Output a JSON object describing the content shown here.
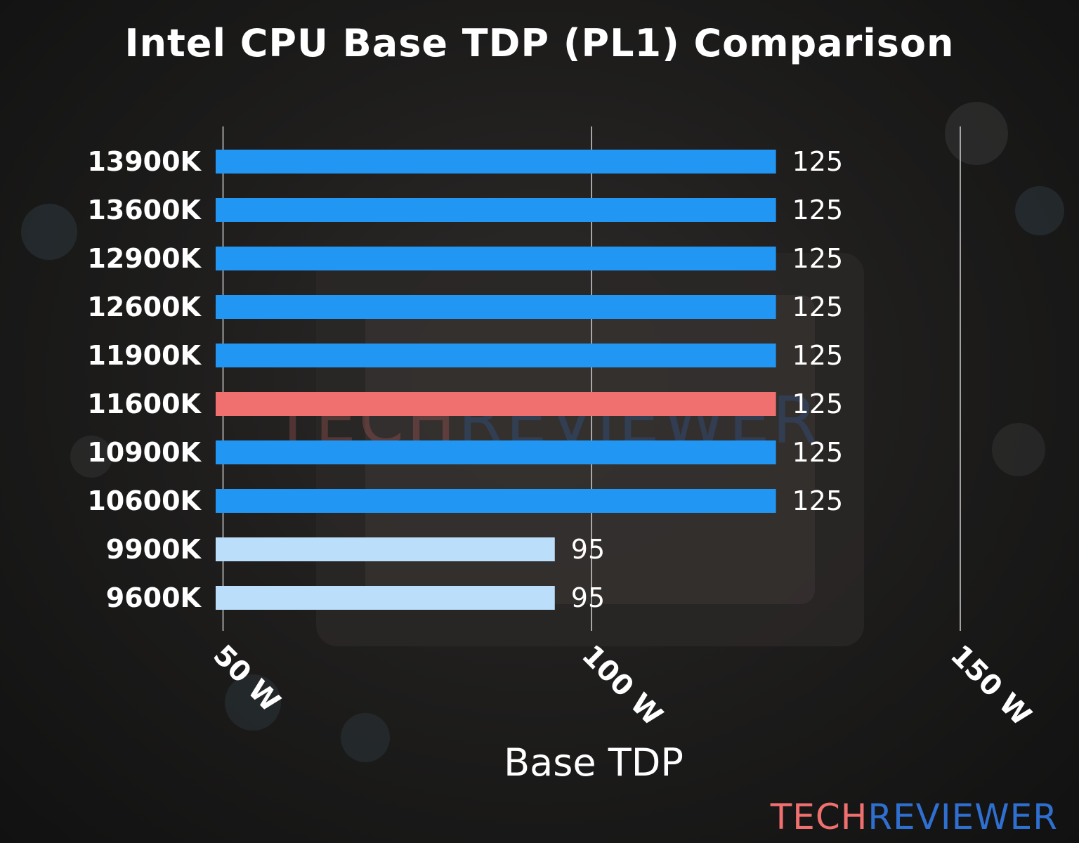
{
  "chart_data": {
    "type": "bar",
    "orientation": "horizontal",
    "title": "Intel CPU Base TDP (PL1) Comparison",
    "xlabel": "Base TDP",
    "ylabel": "",
    "xlim": [
      49,
      150
    ],
    "xticks": [
      50,
      100,
      150
    ],
    "xtick_labels": [
      "50 W",
      "100 W",
      "150 W"
    ],
    "grid": "vertical lines at ticks",
    "categories": [
      "13900K",
      "13600K",
      "12900K",
      "12600K",
      "11900K",
      "11600K",
      "10900K",
      "10600K",
      "9900K",
      "9600K"
    ],
    "values": [
      125,
      125,
      125,
      125,
      125,
      125,
      125,
      125,
      95,
      95
    ],
    "value_labels": [
      "125",
      "125",
      "125",
      "125",
      "125",
      "125",
      "125",
      "125",
      "95",
      "95"
    ],
    "bar_colors": [
      "#2196f3",
      "#2196f3",
      "#2196f3",
      "#2196f3",
      "#2196f3",
      "#f07070",
      "#2196f3",
      "#2196f3",
      "#bbdefb",
      "#bbdefb"
    ]
  },
  "watermark": {
    "part1": "TECH",
    "part2": "REVIEWER",
    "color1": "#f07070",
    "color2": "#2f6fd0"
  }
}
